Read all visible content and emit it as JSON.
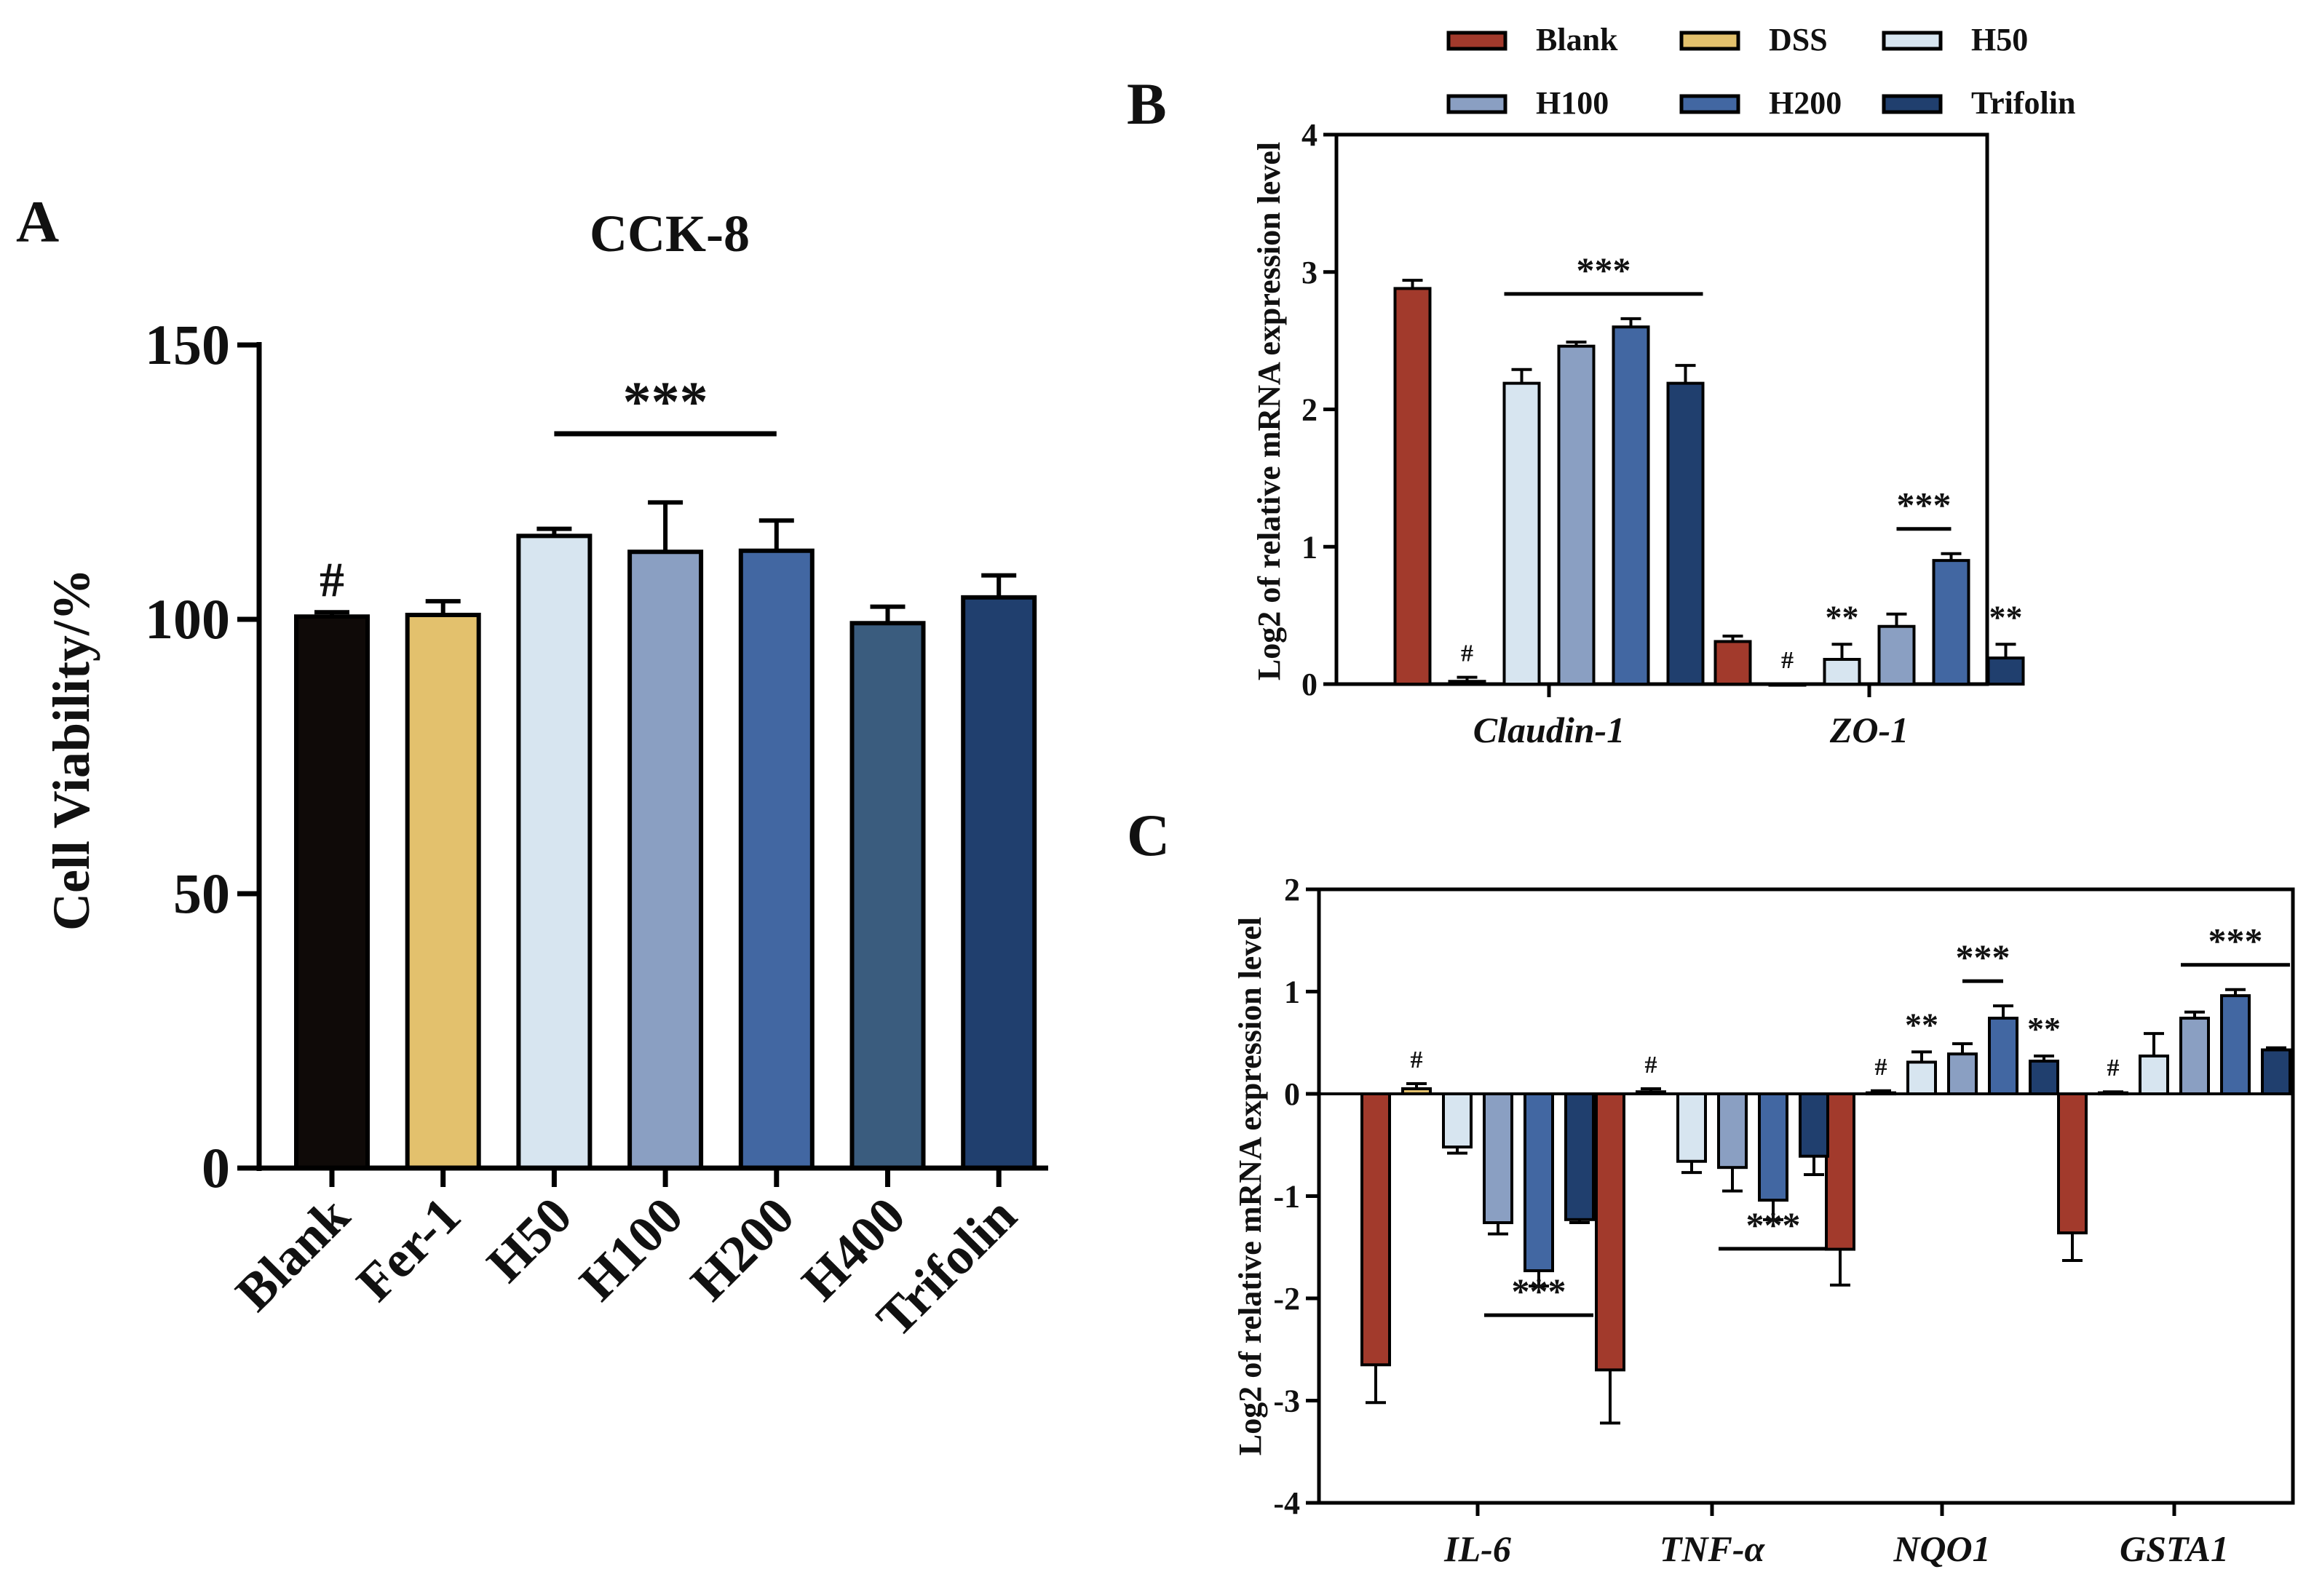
{
  "chart_data": [
    {
      "panel": "A",
      "type": "bar",
      "title": "CCK-8",
      "xlabel": "",
      "ylabel": "Cell Viability/%",
      "ylim": [
        0,
        150
      ],
      "yticks": [
        0,
        50,
        100,
        150
      ],
      "categories": [
        "Blank",
        "Fer-1",
        "H50",
        "H100",
        "H200",
        "H400",
        "Trifolin"
      ],
      "values": [
        100.5,
        100.8,
        115.2,
        112.3,
        112.5,
        99.3,
        104.0
      ],
      "errors": [
        0.8,
        2.5,
        1.3,
        9.0,
        5.5,
        3.0,
        4.0
      ],
      "colors": [
        "#0f0a08",
        "#e3c16d",
        "#d7e5f0",
        "#8a9fc2",
        "#4267a2",
        "#3a5c7e",
        "#203f6e"
      ],
      "annotations": [
        {
          "text": "#",
          "category": "Blank"
        },
        {
          "text": "***",
          "from": "H50",
          "to": "H200"
        }
      ]
    },
    {
      "panel": "B",
      "type": "bar",
      "title": "",
      "ylabel": "Log2 of relative mRNA expression level",
      "ylim": [
        0,
        4
      ],
      "yticks": [
        0,
        1,
        2,
        3,
        4
      ],
      "categories": [
        "Claudin-1",
        "ZO-1"
      ],
      "series": [
        {
          "name": "Blank",
          "values": [
            2.88,
            0.31
          ],
          "errors": [
            0.06,
            0.04
          ]
        },
        {
          "name": "DSS",
          "values": [
            0.02,
            0.0
          ],
          "errors": [
            0.03,
            0.0
          ]
        },
        {
          "name": "H50",
          "values": [
            2.19,
            0.18
          ],
          "errors": [
            0.1,
            0.11
          ]
        },
        {
          "name": "H100",
          "values": [
            2.46,
            0.42
          ],
          "errors": [
            0.03,
            0.09
          ]
        },
        {
          "name": "H200",
          "values": [
            2.6,
            0.9
          ],
          "errors": [
            0.06,
            0.05
          ]
        },
        {
          "name": "Trifolin",
          "values": [
            2.19,
            0.19
          ],
          "errors": [
            0.13,
            0.1
          ]
        }
      ],
      "annotations": [
        {
          "text": "#",
          "category": "Claudin-1",
          "series": "DSS"
        },
        {
          "text": "***",
          "category": "Claudin-1",
          "from": "H50",
          "to": "Trifolin"
        },
        {
          "text": "#",
          "category": "ZO-1",
          "series": "DSS"
        },
        {
          "text": "**",
          "category": "ZO-1",
          "series": "H50"
        },
        {
          "text": "***",
          "category": "ZO-1",
          "from": "H100",
          "to": "H200"
        },
        {
          "text": "**",
          "category": "ZO-1",
          "series": "Trifolin"
        }
      ]
    },
    {
      "panel": "C",
      "type": "bar",
      "title": "",
      "ylabel": "Log2 of relative mRNA expression level",
      "ylim": [
        -4,
        2
      ],
      "yticks": [
        -4,
        -3,
        -2,
        -1,
        0,
        1,
        2
      ],
      "categories": [
        "IL-6",
        "TNF-α",
        "NQO1",
        "GSTA1"
      ],
      "series": [
        {
          "name": "Blank",
          "values": [
            -2.65,
            -2.7,
            -1.52,
            -1.36
          ],
          "errors": [
            0.37,
            0.52,
            0.35,
            0.27
          ]
        },
        {
          "name": "DSS",
          "values": [
            0.05,
            0.02,
            0.01,
            0.01
          ],
          "errors": [
            0.05,
            0.03,
            0.02,
            0.01
          ]
        },
        {
          "name": "H50",
          "values": [
            -0.52,
            -0.66,
            0.31,
            0.37
          ],
          "errors": [
            0.06,
            0.11,
            0.1,
            0.22
          ]
        },
        {
          "name": "H100",
          "values": [
            -1.26,
            -0.72,
            0.39,
            0.74
          ],
          "errors": [
            0.11,
            0.23,
            0.1,
            0.06
          ]
        },
        {
          "name": "H200",
          "values": [
            -1.73,
            -1.04,
            0.74,
            0.96
          ],
          "errors": [
            0.15,
            0.19,
            0.12,
            0.06
          ]
        },
        {
          "name": "Trifolin",
          "values": [
            -1.23,
            -0.61,
            0.32,
            0.43
          ],
          "errors": [
            0.03,
            0.18,
            0.05,
            0.02
          ]
        }
      ],
      "annotations": [
        {
          "text": "#",
          "category": "IL-6",
          "series": "DSS"
        },
        {
          "text": "***",
          "category": "IL-6",
          "from": "H100",
          "to": "Trifolin"
        },
        {
          "text": "#",
          "category": "TNF-α",
          "series": "DSS"
        },
        {
          "text": "***",
          "category": "TNF-α",
          "from": "H100",
          "to": "Trifolin"
        },
        {
          "text": "#",
          "category": "NQO1",
          "series": "DSS"
        },
        {
          "text": "**",
          "category": "NQO1",
          "series": "H50"
        },
        {
          "text": "***",
          "category": "NQO1",
          "from": "H100",
          "to": "H200"
        },
        {
          "text": "**",
          "category": "NQO1",
          "series": "Trifolin"
        },
        {
          "text": "#",
          "category": "GSTA1",
          "series": "DSS"
        },
        {
          "text": "***",
          "category": "GSTA1",
          "from": "H100",
          "to": "Trifolin"
        }
      ]
    }
  ],
  "legend": {
    "items": [
      {
        "label": "Blank",
        "color": "#a23a2c"
      },
      {
        "label": "DSS",
        "color": "#e3c16d"
      },
      {
        "label": "H50",
        "color": "#d7e5f0"
      },
      {
        "label": "H100",
        "color": "#8a9fc2"
      },
      {
        "label": "H200",
        "color": "#4267a2"
      },
      {
        "label": "Trifolin",
        "color": "#203f6e"
      }
    ]
  },
  "panel_labels": {
    "a": "A",
    "b": "B",
    "c": "C"
  }
}
